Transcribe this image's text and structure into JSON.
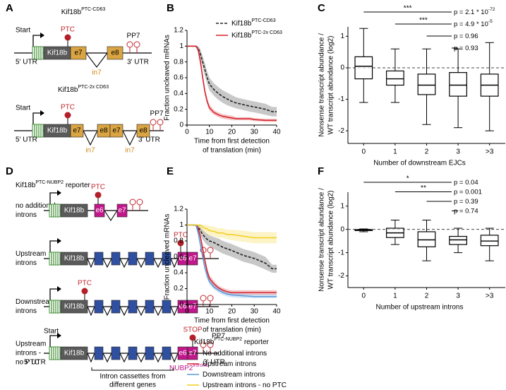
{
  "panel_labels": [
    "A",
    "B",
    "C",
    "D",
    "E",
    "F"
  ],
  "diagram_a": {
    "constructs": [
      {
        "title": "Kif18b",
        "title_sup": "PTC-CD63",
        "start": "Start",
        "gene": "Kif18b",
        "ptc": "PTC",
        "exons": [
          "e7",
          "e8"
        ],
        "introns": [
          "in7"
        ],
        "pp7": "PP7",
        "utr5": "5' UTR",
        "utr3": "3' UTR"
      },
      {
        "title": "Kif18b",
        "title_sup": "PTC-2x CD63",
        "start": "Start",
        "gene": "Kif18b",
        "ptc": "PTC",
        "exons": [
          "e7",
          "e8",
          "e7",
          "e8"
        ],
        "introns": [
          "in7",
          "in7"
        ],
        "pp7": "PP7",
        "utr5": "5' UTR",
        "utr3": "3' UTR"
      }
    ]
  },
  "diagram_d": {
    "title": "Kif18b",
    "title_sup": "PTC-NUBP2",
    "title_rest": " reporter",
    "rows": [
      {
        "label": [
          "no additional",
          "introns"
        ],
        "gene": "Kif18b",
        "ptc": "PTC",
        "exons": [
          "e6",
          "e7"
        ]
      },
      {
        "label": [
          "Upstream",
          "introns"
        ],
        "gene": "Kif18b",
        "ptc": "PTC",
        "exons": [
          "e6",
          "e7"
        ]
      },
      {
        "label": [
          "Downstream",
          "introns"
        ],
        "gene": "Kif18b",
        "ptc": "PTC",
        "exons": [
          "e6",
          "e7"
        ]
      },
      {
        "label": [
          "Upstream",
          "introns -",
          "no PTC"
        ],
        "start": "Start",
        "gene": "Kif18b",
        "stop": "STOP",
        "pp7": "PP7",
        "exons": [
          "e6",
          "e7"
        ],
        "utr5": "5' UTR",
        "utr3": "3' UTR",
        "intron_name": "NUBP2",
        "intron_sup": "intron6"
      }
    ],
    "cassette_label": [
      "Intron cassettes from",
      "different genes"
    ]
  },
  "chart_data": [
    {
      "type": "line",
      "ylabel": "Fraction uncleaved mRNAs",
      "xlabel": [
        "Time from first detection",
        "of translation (min)"
      ],
      "xlim": [
        0,
        40
      ],
      "xticks": [
        0,
        10,
        20,
        30,
        40
      ],
      "ylim": [
        0,
        1.2
      ],
      "yticks": [
        0,
        0.2,
        0.4,
        0.6,
        0.8,
        1,
        1.2
      ],
      "legend": "upper right",
      "x": [
        0,
        4,
        5,
        6,
        7,
        8,
        9,
        10,
        12,
        14,
        16,
        18,
        20,
        22,
        25,
        28,
        30,
        35,
        38,
        40
      ],
      "series": [
        {
          "name": "Kif18b",
          "name_sup": "PTC-CD63",
          "color": "#222222",
          "dash": true,
          "values": [
            1,
            1,
            0.97,
            0.9,
            0.8,
            0.7,
            0.6,
            0.52,
            0.45,
            0.4,
            0.36,
            0.33,
            0.3,
            0.28,
            0.26,
            0.24,
            0.23,
            0.2,
            0.17,
            0.17
          ],
          "lower": [
            1,
            0.99,
            0.93,
            0.84,
            0.73,
            0.62,
            0.52,
            0.44,
            0.37,
            0.32,
            0.28,
            0.25,
            0.23,
            0.21,
            0.19,
            0.17,
            0.16,
            0.13,
            0.11,
            0.11
          ],
          "upper": [
            1,
            1,
            1,
            0.96,
            0.87,
            0.78,
            0.68,
            0.6,
            0.53,
            0.48,
            0.44,
            0.41,
            0.38,
            0.35,
            0.33,
            0.31,
            0.3,
            0.27,
            0.23,
            0.23
          ]
        },
        {
          "name": "Kif18b",
          "name_sup": "PTC-2x CD63",
          "color": "#d7262e",
          "dash": false,
          "values": [
            1,
            1,
            0.95,
            0.8,
            0.6,
            0.42,
            0.3,
            0.22,
            0.16,
            0.13,
            0.11,
            0.1,
            0.09,
            0.08,
            0.08,
            0.08,
            0.07,
            0.06,
            0.06,
            0.06
          ],
          "lower": [
            1,
            0.99,
            0.92,
            0.75,
            0.55,
            0.37,
            0.26,
            0.18,
            0.13,
            0.1,
            0.08,
            0.07,
            0.06,
            0.06,
            0.06,
            0.06,
            0.05,
            0.04,
            0.04,
            0.04
          ],
          "upper": [
            1,
            1,
            0.98,
            0.85,
            0.65,
            0.47,
            0.34,
            0.26,
            0.19,
            0.16,
            0.14,
            0.13,
            0.12,
            0.1,
            0.1,
            0.1,
            0.09,
            0.08,
            0.08,
            0.08
          ]
        }
      ]
    },
    {
      "type": "box",
      "categories": [
        "0",
        "1",
        "2",
        "3",
        ">3"
      ],
      "xlabel": "Number of downstream EJCs",
      "ylabel": [
        "Nonsense transcript abundance /",
        "WT transcript abundance (log2)"
      ],
      "ylim": [
        -2.4,
        1.3
      ],
      "yticks": [
        -2,
        -1,
        0,
        1
      ],
      "reference_line": 0,
      "color": "#000000",
      "whisker_low": [
        -1.1,
        -1.1,
        -1.8,
        -1.9,
        -2
      ],
      "q1": [
        -0.35,
        -0.55,
        -0.85,
        -0.9,
        -0.9
      ],
      "median": [
        0.05,
        -0.35,
        -0.55,
        -0.55,
        -0.55
      ],
      "q3": [
        0.35,
        -0.1,
        -0.2,
        -0.15,
        -0.2
      ],
      "whisker_high": [
        1.25,
        0.6,
        0.6,
        0.6,
        0.8
      ],
      "comparisons": [
        {
          "stars": "***",
          "p": "p = 2.1 * 10",
          "p_sup": "-72"
        },
        {
          "stars": "***",
          "p": "p = 4.9 * 10",
          "p_sup": "-5"
        },
        {
          "p": "p = 0.96"
        },
        {
          "p": "p = 0.93"
        }
      ]
    },
    {
      "type": "line",
      "ylabel": "Fraction uncleaved mRNAs",
      "xlabel": [
        "Time from first detection",
        "of translation (min)"
      ],
      "xlim": [
        0,
        40
      ],
      "xticks": [
        0,
        10,
        20,
        30,
        40
      ],
      "ylim": [
        0,
        1.2
      ],
      "yticks": [
        0,
        0.2,
        0.4,
        0.6,
        0.8,
        1,
        1.2
      ],
      "legend": "below",
      "legend_title": {
        "name": "Kif18b",
        "sup": "PTC-NUBP2",
        "rest": " reporter"
      },
      "x": [
        0,
        4,
        5,
        6,
        7,
        8,
        9,
        10,
        12,
        14,
        16,
        18,
        20,
        25,
        30,
        35,
        38,
        40
      ],
      "series": [
        {
          "name": "No additional introns",
          "color": "#222222",
          "dash": true,
          "values": [
            1,
            1,
            0.97,
            0.93,
            0.88,
            0.85,
            0.82,
            0.8,
            0.78,
            0.75,
            0.72,
            0.7,
            0.68,
            0.62,
            0.58,
            0.52,
            0.45,
            0.45
          ],
          "lower": [
            1,
            0.99,
            0.93,
            0.88,
            0.82,
            0.78,
            0.75,
            0.73,
            0.7,
            0.67,
            0.64,
            0.62,
            0.6,
            0.54,
            0.5,
            0.44,
            0.4,
            0.4
          ],
          "upper": [
            1,
            1,
            1,
            0.98,
            0.94,
            0.91,
            0.89,
            0.87,
            0.85,
            0.83,
            0.8,
            0.78,
            0.76,
            0.7,
            0.66,
            0.6,
            0.5,
            0.5
          ]
        },
        {
          "name": "Upstream introns",
          "color": "#d7262e",
          "dash": false,
          "values": [
            1,
            1,
            0.95,
            0.85,
            0.7,
            0.55,
            0.42,
            0.33,
            0.26,
            0.21,
            0.18,
            0.16,
            0.15,
            0.15,
            0.15,
            0.15,
            0.15,
            0.15
          ],
          "lower": [
            1,
            0.99,
            0.92,
            0.81,
            0.65,
            0.5,
            0.38,
            0.29,
            0.22,
            0.18,
            0.15,
            0.13,
            0.12,
            0.12,
            0.12,
            0.12,
            0.12,
            0.12
          ],
          "upper": [
            1,
            1,
            0.98,
            0.89,
            0.75,
            0.6,
            0.46,
            0.37,
            0.3,
            0.24,
            0.21,
            0.19,
            0.18,
            0.18,
            0.18,
            0.18,
            0.18,
            0.18
          ]
        },
        {
          "name": "Downstream introns",
          "color": "#5b9bdc",
          "dash": false,
          "values": [
            1,
            1,
            0.9,
            0.75,
            0.6,
            0.46,
            0.36,
            0.29,
            0.22,
            0.18,
            0.15,
            0.13,
            0.12,
            0.11,
            0.1,
            0.1,
            0.1,
            0.1
          ],
          "lower": [
            1,
            0.98,
            0.87,
            0.71,
            0.56,
            0.42,
            0.32,
            0.25,
            0.19,
            0.15,
            0.12,
            0.1,
            0.09,
            0.08,
            0.08,
            0.08,
            0.08,
            0.08
          ],
          "upper": [
            1,
            1,
            0.93,
            0.79,
            0.64,
            0.5,
            0.4,
            0.33,
            0.25,
            0.21,
            0.18,
            0.16,
            0.15,
            0.14,
            0.13,
            0.13,
            0.13,
            0.13
          ]
        },
        {
          "name": "Upstream introns - no PTC",
          "color": "#f2cf1d",
          "dash": false,
          "values": [
            1,
            1,
            1,
            1,
            0.98,
            0.96,
            0.95,
            0.93,
            0.92,
            0.9,
            0.9,
            0.88,
            0.88,
            0.86,
            0.84,
            0.84,
            0.84,
            0.84
          ],
          "lower": [
            1,
            1,
            0.97,
            0.96,
            0.93,
            0.9,
            0.89,
            0.87,
            0.86,
            0.84,
            0.84,
            0.82,
            0.81,
            0.79,
            0.77,
            0.77,
            0.77,
            0.77
          ],
          "upper": [
            1,
            1,
            1,
            1,
            1,
            1,
            1,
            0.99,
            0.98,
            0.96,
            0.96,
            0.94,
            0.94,
            0.93,
            0.91,
            0.91,
            0.91,
            0.91
          ]
        }
      ]
    },
    {
      "type": "box",
      "categories": [
        "0",
        "1",
        "2",
        "3",
        ">3"
      ],
      "xlabel": "Number of upstream introns",
      "ylabel": [
        "Nonsense transcript abundance /",
        "WT transcript abundance (log2)"
      ],
      "ylim": [
        -2.5,
        1.6
      ],
      "yticks": [
        -2,
        -1,
        0,
        1
      ],
      "reference_line": 0,
      "color": "#000000",
      "whisker_low": [
        -0.1,
        -0.65,
        -1.35,
        -1,
        -1.35
      ],
      "q1": [
        -0.05,
        -0.35,
        -0.75,
        -0.65,
        -0.7
      ],
      "median": [
        -0.03,
        -0.15,
        -0.45,
        -0.45,
        -0.5
      ],
      "q3": [
        -0.01,
        0.05,
        -0.1,
        -0.3,
        -0.25
      ],
      "whisker_high": [
        0.02,
        0.4,
        0.4,
        0.05,
        0.05
      ],
      "comparisons": [
        {
          "stars": "*",
          "p": "p = 0.04"
        },
        {
          "stars": "**",
          "p": "p = 0.001"
        },
        {
          "p": "p = 0.39"
        },
        {
          "p": "p = 0.74"
        }
      ]
    }
  ]
}
